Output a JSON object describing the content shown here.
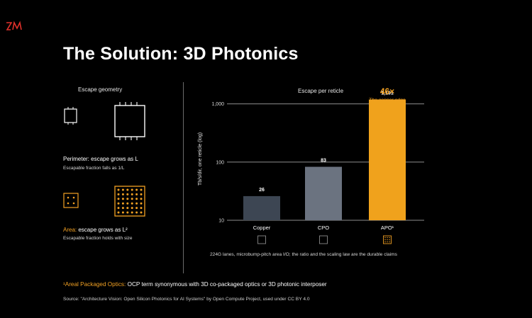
{
  "logo": {
    "name": "ocp-logo"
  },
  "title": "The Solution: 3D Photonics",
  "left_panel": {
    "heading": "Escape geometry",
    "perimeter": {
      "title": "Perimeter: escape grows as L",
      "subtitle": "Escapable fraction falls as 1/L"
    },
    "area": {
      "title_prefix": "Area:",
      "title_rest": " escape grows as L²",
      "subtitle": "Escapable fraction holds with size"
    }
  },
  "chart_data": {
    "type": "bar",
    "title": "Escape per reticle",
    "ylabel": "Tb/s/dir, one reticle (log)",
    "yscale": "log",
    "ylim": [
      10,
      2000
    ],
    "yticks": [
      "10",
      "100",
      "1,000"
    ],
    "categories": [
      "Copper",
      "CPO",
      "APO¹"
    ],
    "values": [
      26,
      83,
      1191
    ],
    "value_labels": [
      "26",
      "83",
      "1,191"
    ],
    "bar_colors": [
      "#3d4653",
      "#6b7380",
      "#f0a21c"
    ],
    "callout": {
      "value": "46×",
      "text": "The copper edge",
      "color": "#f2a123"
    },
    "grid": "horizontal"
  },
  "caption": "224G lanes, microbump-pitch area I/O; the ratio and the scaling law are the durable claims",
  "footnote": {
    "highlight": "¹Areal Packaged Optics:",
    "rest": " OCP term synonymous with 3D co-packaged optics or 3D photonic interposer"
  },
  "source": "Source: \"Architecture Vision: Open Silicon Photonics for AI Systems\" by Open Compute Project, used under CC BY 4.0",
  "colors": {
    "accent": "#f2a123",
    "background": "#000000",
    "divider": "#6a6a6a"
  }
}
